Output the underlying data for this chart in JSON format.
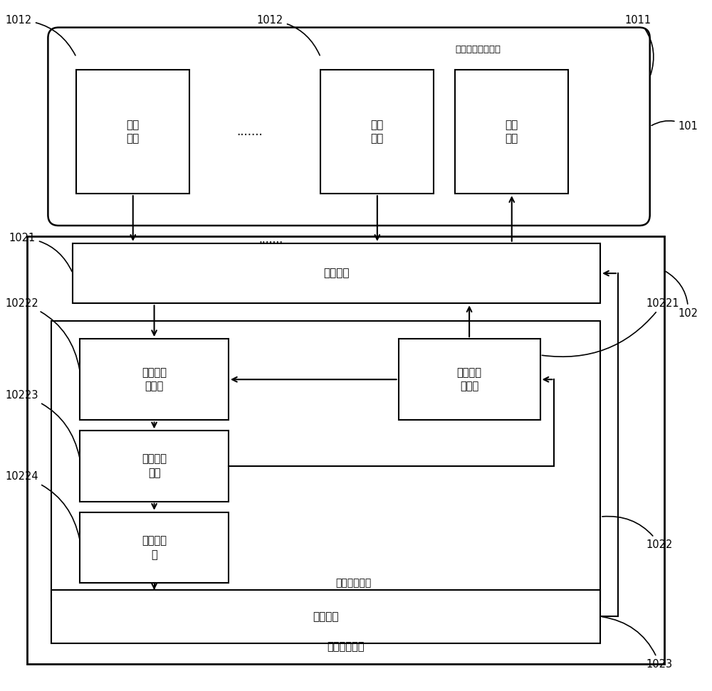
{
  "bg_color": "#ffffff",
  "fig_width": 10.0,
  "fig_height": 9.71,
  "label_1011": "1011",
  "label_1012a": "1012",
  "label_1012b": "1012",
  "label_101": "101",
  "label_102": "102",
  "label_1021": "1021",
  "label_10221": "10221",
  "label_10222": "10222",
  "label_10223": "10223",
  "label_10224": "10224",
  "label_1022": "1022",
  "label_1023": "1023",
  "text_sanlu": "三路以上监测探头",
  "text_jieshou1": "接收\n探头",
  "text_jieshou2": "接收\n探头",
  "text_fashejie": "发射\n探头",
  "text_dots_horiz": ".......",
  "text_dots_vert": ".......",
  "text_kaiguan": "开关单元",
  "text_chaojiema": "超声信号\n解调器",
  "text_chaofasheng": "超声信号\n发生器",
  "text_mozhuanqian": "模数转换\n前端",
  "text_mozhuanqi": "模数转换\n器",
  "text_xinhaochuli_unit": "信号处理单元",
  "text_kongzhidan": "控制单元",
  "text_xinhaochuli_comp": "信号处理组件"
}
